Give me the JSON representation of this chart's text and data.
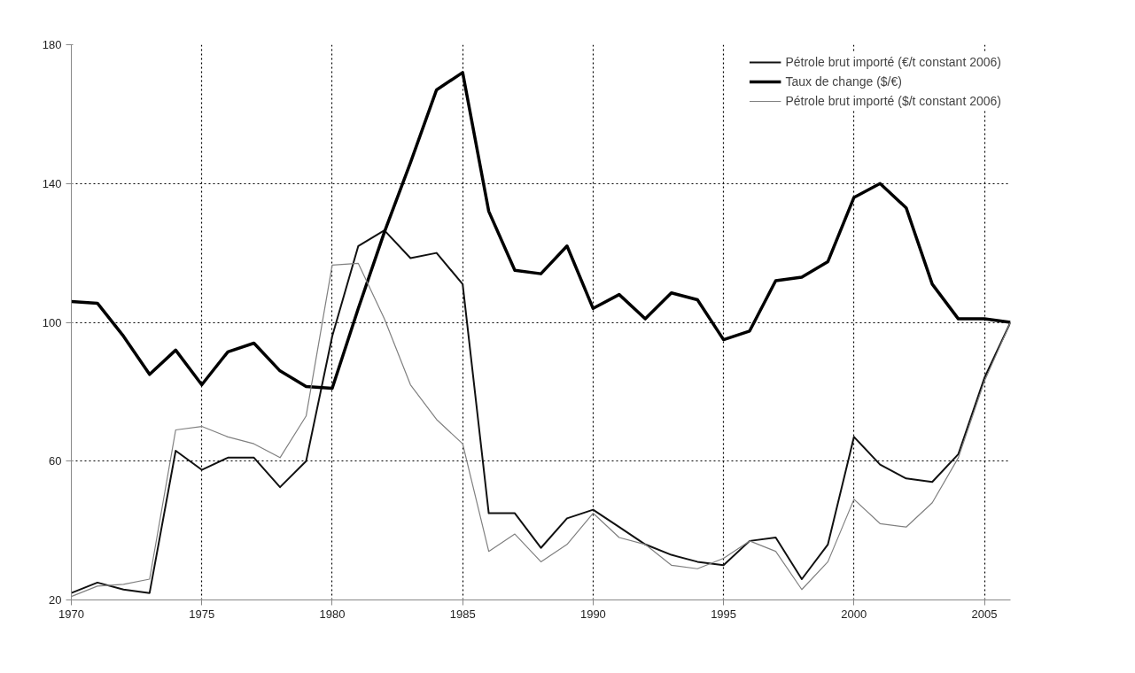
{
  "chart_data": {
    "type": "line",
    "x": [
      1970,
      1971,
      1972,
      1973,
      1974,
      1975,
      1976,
      1977,
      1978,
      1979,
      1980,
      1981,
      1982,
      1983,
      1984,
      1985,
      1986,
      1987,
      1988,
      1989,
      1990,
      1991,
      1992,
      1993,
      1994,
      1995,
      1996,
      1997,
      1998,
      1999,
      2000,
      2001,
      2002,
      2003,
      2004,
      2005,
      2006
    ],
    "series": [
      {
        "name": "Pétrole brut importé (€/t constant 2006)",
        "color": "#111111",
        "values": [
          22,
          25,
          23,
          22,
          63,
          57.5,
          61,
          61,
          52.5,
          60,
          96,
          122,
          126.5,
          118.5,
          120,
          111,
          45,
          45,
          35,
          43.5,
          46,
          41,
          36,
          33,
          31,
          30,
          37,
          38,
          26,
          36,
          67,
          59,
          55,
          54,
          62,
          84,
          100
        ]
      },
      {
        "name": "Taux de change ($/€)",
        "color": "#000000",
        "values": [
          106,
          105.5,
          96,
          85,
          92,
          82,
          91.5,
          94,
          86,
          81.5,
          81,
          104,
          126,
          146,
          167,
          172,
          132,
          115,
          114,
          122,
          104,
          108,
          101,
          108.5,
          106.5,
          95,
          97.5,
          112,
          113,
          117.5,
          136,
          140,
          133,
          111,
          101,
          101,
          100
        ]
      },
      {
        "name": "Pétrole brut importé ($/t constant 2006)",
        "color": "#808080",
        "values": [
          21,
          24,
          24.5,
          26,
          69,
          70,
          67,
          65,
          61,
          73,
          116.5,
          117,
          101,
          82,
          72,
          65,
          34,
          39,
          31,
          36,
          45,
          38,
          36,
          30,
          29,
          32,
          37,
          34,
          23,
          31,
          49,
          42,
          41,
          48,
          61,
          83,
          100
        ]
      }
    ],
    "xlim": [
      1970,
      2006
    ],
    "xticks": [
      1970,
      1975,
      1980,
      1985,
      1990,
      1995,
      2000,
      2005
    ],
    "ylim": [
      20,
      180
    ],
    "yticks": [
      20,
      60,
      100,
      140,
      180
    ],
    "grid": true,
    "legend": "top right",
    "marker": "none",
    "line_style": "solid"
  }
}
